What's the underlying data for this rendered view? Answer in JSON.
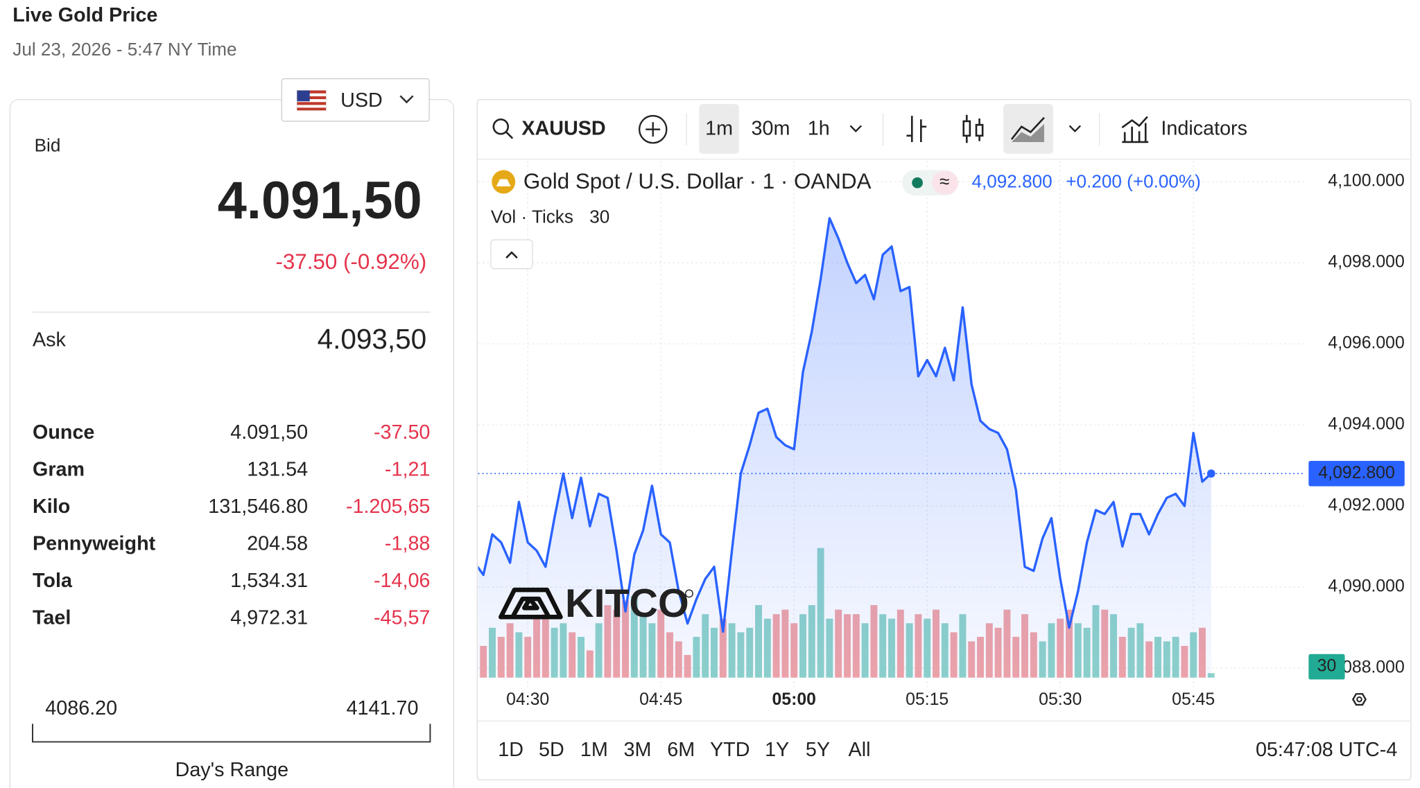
{
  "header": {
    "title": "Live Gold Price",
    "subtitle": "Jul 23, 2026 - 5:47 NY Time"
  },
  "price_panel": {
    "currency": "USD",
    "bid_label": "Bid",
    "bid": "4.091,50",
    "change": "-37.50 (-0.92%)",
    "ask_label": "Ask",
    "ask": "4.093,50",
    "units": [
      {
        "name": "Ounce",
        "price": "4.091,50",
        "change": "-37.50"
      },
      {
        "name": "Gram",
        "price": "131.54",
        "change": "-1,21"
      },
      {
        "name": "Kilo",
        "price": "131,546.80",
        "change": "-1.205,65"
      },
      {
        "name": "Pennyweight",
        "price": "204.58",
        "change": "-1,88"
      },
      {
        "name": "Tola",
        "price": "1,534.31",
        "change": "-14,06"
      },
      {
        "name": "Tael",
        "price": "4,972.31",
        "change": "-45,57"
      }
    ],
    "range_low": "4086.20",
    "range_high": "4141.70",
    "range_label": "Day's Range"
  },
  "toolbar": {
    "symbol": "XAUUSD",
    "intervals": [
      "1m",
      "30m",
      "1h"
    ],
    "indicators": "Indicators"
  },
  "legend": {
    "name": "Gold Spot / U.S. Dollar · 1 · OANDA",
    "last": "4,092.800",
    "change": "+0.200 (+0.00%)",
    "vol_label": "Vol · Ticks",
    "vol_value": "30"
  },
  "watermark": "KITCO",
  "ranges": [
    "1D",
    "5D",
    "1M",
    "3M",
    "6M",
    "YTD",
    "1Y",
    "5Y",
    "All"
  ],
  "clock": "05:47:08 UTC-4",
  "chart_data": {
    "type": "line",
    "categories": [
      null,
      null,
      null,
      null,
      null,
      null,
      "04:30",
      null,
      null,
      null,
      null,
      null,
      null,
      null,
      null,
      null,
      null,
      null,
      null,
      null,
      null,
      "04:45",
      null,
      null,
      null,
      null,
      null,
      null,
      null,
      null,
      null,
      null,
      null,
      null,
      null,
      null,
      "05:00",
      null,
      null,
      null,
      null,
      null,
      null,
      null,
      null,
      null,
      null,
      null,
      null,
      null,
      null,
      "05:15",
      null,
      null,
      null,
      null,
      null,
      null,
      null,
      null,
      null,
      null,
      null,
      null,
      null,
      null,
      "05:30",
      null,
      null,
      null,
      null,
      null,
      null,
      null,
      null,
      null,
      null,
      null,
      null,
      null,
      null,
      "05:45",
      null,
      null
    ],
    "values": [
      4090.6,
      4090.3,
      4091.3,
      4091.1,
      4090.6,
      4092.1,
      4091.1,
      4090.9,
      4090.5,
      4091.7,
      4092.8,
      4091.7,
      4092.7,
      4091.5,
      4092.3,
      4092.2,
      4090.9,
      4089.4,
      4090.8,
      4091.4,
      4092.5,
      4091.3,
      4091.1,
      4089.9,
      4089.1,
      4089.7,
      4090.2,
      4090.5,
      4088.9,
      4090.9,
      4092.8,
      4093.5,
      4094.3,
      4094.4,
      4093.7,
      4093.5,
      4093.4,
      4095.3,
      4096.3,
      4097.6,
      4099.1,
      4098.6,
      4098.0,
      4097.5,
      4097.7,
      4097.1,
      4098.2,
      4098.4,
      4097.3,
      4097.4,
      4095.2,
      4095.6,
      4095.2,
      4095.9,
      4095.1,
      4096.9,
      4095.0,
      4094.1,
      4093.9,
      4093.8,
      4093.4,
      4092.4,
      4090.5,
      4090.4,
      4091.2,
      4091.7,
      4090.2,
      4089.0,
      4089.9,
      4091.1,
      4091.9,
      4091.8,
      4092.1,
      4091.0,
      4091.8,
      4091.8,
      4091.3,
      4091.8,
      4092.2,
      4092.3,
      4092.0,
      4093.8,
      4092.6,
      4092.8
    ],
    "volume": [
      240,
      210,
      330,
      270,
      360,
      300,
      270,
      390,
      420,
      330,
      360,
      300,
      270,
      180,
      360,
      480,
      450,
      510,
      540,
      420,
      360,
      450,
      300,
      240,
      150,
      270,
      420,
      330,
      390,
      360,
      300,
      330,
      480,
      390,
      420,
      450,
      360,
      420,
      480,
      858,
      390,
      450,
      420,
      420,
      360,
      480,
      420,
      390,
      450,
      360,
      420,
      390,
      450,
      360,
      300,
      420,
      240,
      270,
      360,
      330,
      450,
      270,
      420,
      300,
      240,
      360,
      390,
      450,
      360,
      330,
      480,
      450,
      420,
      270,
      330,
      360,
      240,
      270,
      240,
      270,
      210,
      300,
      330,
      30
    ],
    "vlim": [
      0,
      1000
    ],
    "ylim": [
      4087.52,
      4100.51
    ],
    "yticks": [
      {
        "value": 4088,
        "label": "4,088.000"
      },
      {
        "value": 4090,
        "label": "4,090.000"
      },
      {
        "value": 4092,
        "label": "4,092.000"
      },
      {
        "value": 4094,
        "label": "4,094.000"
      },
      {
        "value": 4096,
        "label": "4,096.000"
      },
      {
        "value": 4098,
        "label": "4,098.000"
      },
      {
        "value": 4100,
        "label": "4,100.000"
      }
    ],
    "color": "#2962ff",
    "up_color": "#8fd3c9",
    "down_color": "#f2a4a6",
    "grid": true
  }
}
